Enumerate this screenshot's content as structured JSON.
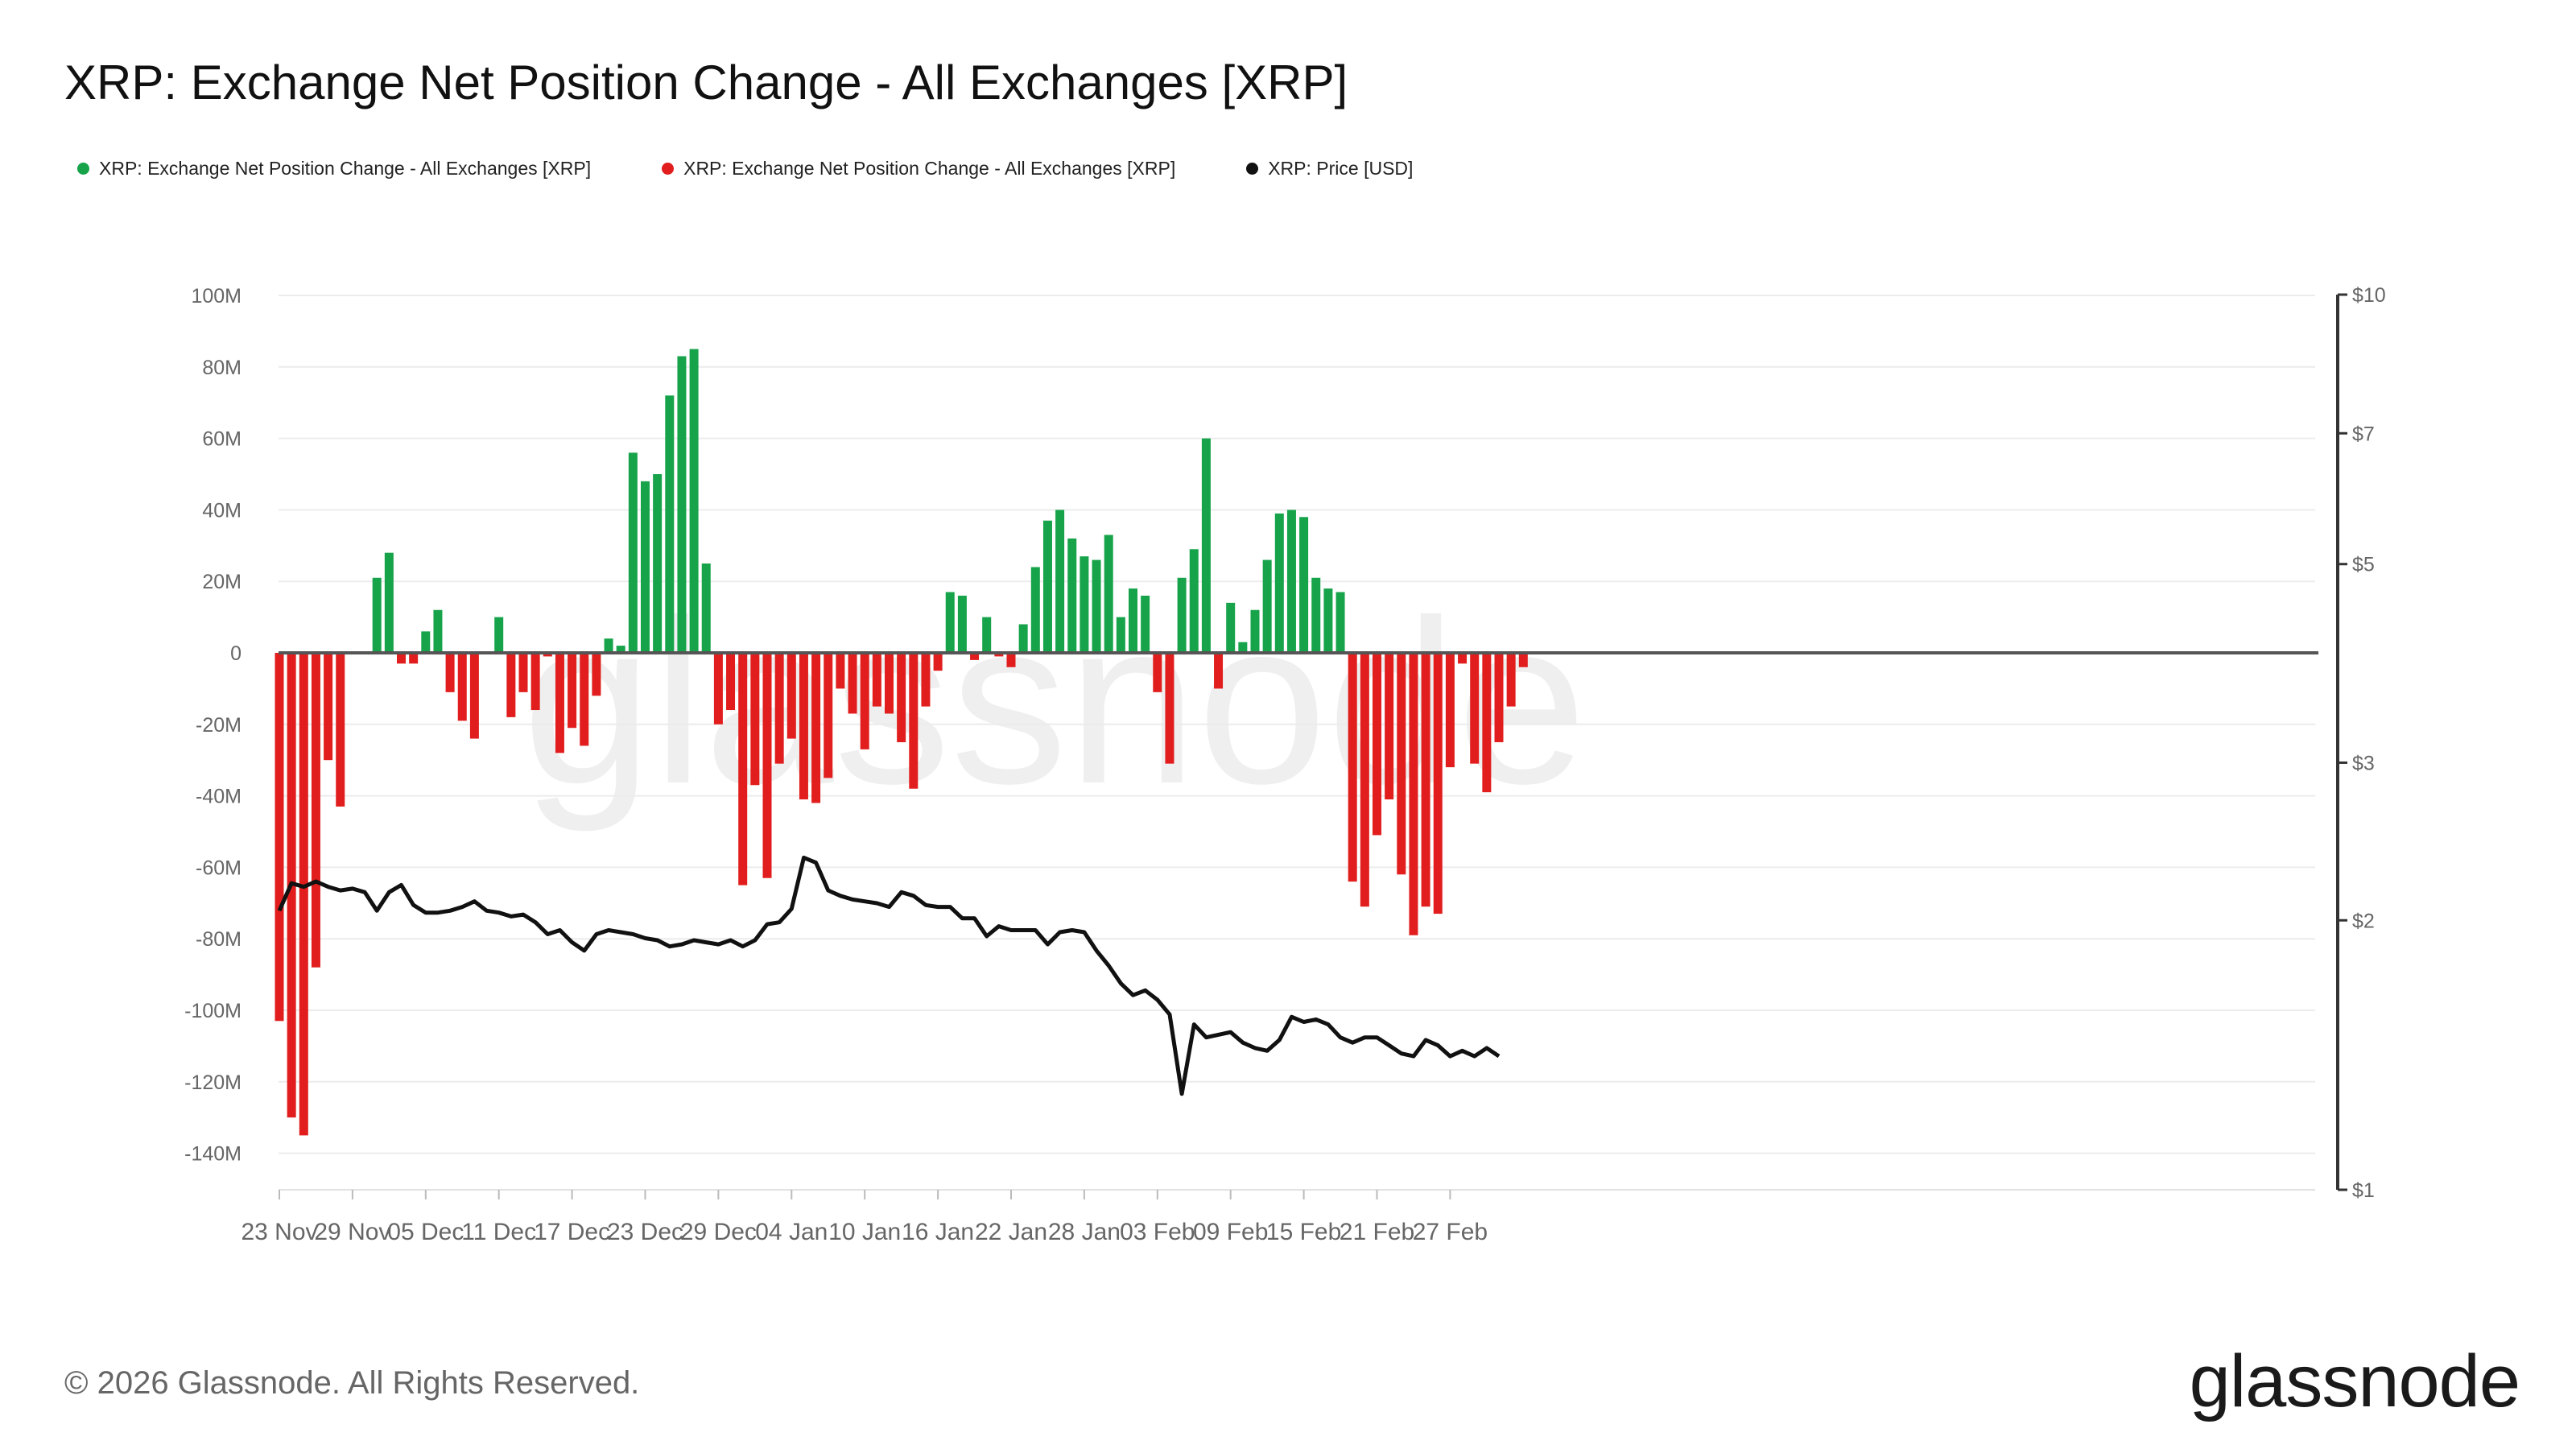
{
  "title": "XRP: Exchange Net Position Change - All Exchanges [XRP]",
  "legend": [
    {
      "label": "XRP: Exchange Net Position Change - All Exchanges [XRP]",
      "color": "#16a34a"
    },
    {
      "label": "XRP: Exchange Net Position Change - All Exchanges [XRP]",
      "color": "#e11d1d"
    },
    {
      "label": "XRP: Price [USD]",
      "color": "#111111"
    }
  ],
  "watermark": "glassnode",
  "footer": "© 2026 Glassnode. All Rights Reserved.",
  "brand": "glassnode",
  "chart_data": {
    "type": "bar",
    "title": "XRP: Exchange Net Position Change - All Exchanges [XRP]",
    "x_labels": [
      "23 Nov",
      "29 Nov",
      "05 Dec",
      "11 Dec",
      "17 Dec",
      "23 Dec",
      "29 Dec",
      "04 Jan",
      "10 Jan",
      "16 Jan",
      "22 Jan",
      "28 Jan",
      "03 Feb",
      "09 Feb",
      "15 Feb",
      "21 Feb",
      "27 Feb"
    ],
    "x_label_every": 6,
    "y_left": {
      "ticks": [
        100,
        80,
        60,
        40,
        20,
        0,
        -20,
        -40,
        -60,
        -80,
        -100,
        -120,
        -140
      ],
      "tick_labels": [
        "100M",
        "80M",
        "60M",
        "40M",
        "20M",
        "0",
        "-20M",
        "-40M",
        "-60M",
        "-80M",
        "-100M",
        "-120M",
        "-140M"
      ],
      "min": -150,
      "max": 100,
      "unit": "M XRP"
    },
    "y_right": {
      "scale": "log",
      "ticks": [
        10,
        7,
        5,
        3,
        2,
        1
      ],
      "tick_labels": [
        "$10",
        "$7",
        "$5",
        "$3",
        "$2",
        "$1"
      ],
      "min": 1,
      "max": 10
    },
    "colors": {
      "positive": "#16a34a",
      "negative": "#e11d1d",
      "price": "#111111"
    },
    "series": [
      {
        "name": "XRP: Exchange Net Position Change - All Exchanges [XRP]",
        "axis": "left",
        "kind": "bar",
        "values": [
          -103,
          -130,
          -135,
          -88,
          -30,
          -43,
          0,
          0,
          21,
          28,
          -3,
          -3,
          6,
          12,
          -11,
          -19,
          -24,
          0,
          10,
          -18,
          -11,
          -16,
          -1,
          -28,
          -21,
          -26,
          -12,
          4,
          2,
          56,
          48,
          50,
          72,
          83,
          85,
          25,
          -20,
          -16,
          -65,
          -37,
          -63,
          -31,
          -24,
          -41,
          -42,
          -35,
          -10,
          -17,
          -27,
          -15,
          -17,
          -25,
          -38,
          -15,
          -5,
          17,
          16,
          -2,
          10,
          -1,
          -4,
          8,
          24,
          37,
          40,
          32,
          27,
          26,
          33,
          10,
          18,
          16,
          -11,
          -31,
          21,
          29,
          60,
          -10,
          14,
          3,
          12,
          26,
          39,
          40,
          38,
          21,
          18,
          17,
          -64,
          -71,
          -51,
          -41,
          -62,
          -79,
          -71,
          -73,
          -32,
          -3,
          -31,
          -39,
          -25,
          -15,
          -4
        ]
      },
      {
        "name": "XRP: Price [USD]",
        "axis": "right",
        "kind": "line",
        "values": [
          2.05,
          2.2,
          2.18,
          2.21,
          2.18,
          2.16,
          2.17,
          2.15,
          2.05,
          2.15,
          2.19,
          2.08,
          2.04,
          2.04,
          2.05,
          2.07,
          2.1,
          2.05,
          2.04,
          2.02,
          2.03,
          1.99,
          1.93,
          1.95,
          1.89,
          1.85,
          1.93,
          1.95,
          1.94,
          1.93,
          1.91,
          1.9,
          1.87,
          1.88,
          1.9,
          1.89,
          1.88,
          1.9,
          1.87,
          1.9,
          1.98,
          1.99,
          2.06,
          2.35,
          2.32,
          2.16,
          2.13,
          2.11,
          2.1,
          2.09,
          2.07,
          2.15,
          2.13,
          2.08,
          2.07,
          2.07,
          2.01,
          2.01,
          1.92,
          1.97,
          1.95,
          1.95,
          1.95,
          1.88,
          1.94,
          1.95,
          1.94,
          1.85,
          1.78,
          1.7,
          1.65,
          1.67,
          1.63,
          1.57,
          1.28,
          1.53,
          1.48,
          1.49,
          1.5,
          1.46,
          1.44,
          1.43,
          1.47,
          1.56,
          1.54,
          1.55,
          1.53,
          1.48,
          1.46,
          1.48,
          1.48,
          1.45,
          1.42,
          1.41,
          1.47,
          1.45,
          1.41,
          1.43,
          1.41,
          1.44,
          1.41
        ]
      }
    ]
  }
}
